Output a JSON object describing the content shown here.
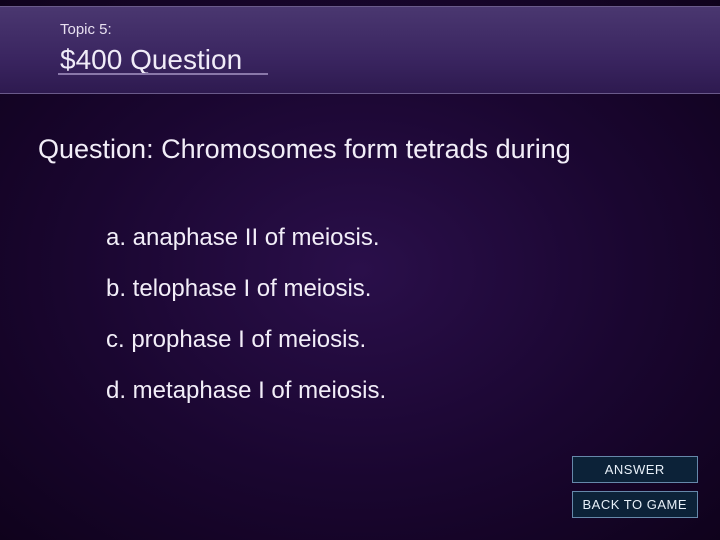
{
  "background": {
    "gradient_center": "#2a0f4a",
    "gradient_mid": "#1a0630",
    "gradient_edge": "#0f021c"
  },
  "header": {
    "topic_label": "Topic 5:",
    "title": "$400 Question",
    "bg_top": "#4a3770",
    "bg_bottom": "#2e1a50",
    "border_color": "#6a5a8a",
    "underline_color": "#8a78aa",
    "text_color": "#f0ecf8",
    "topic_fontsize": 15,
    "title_fontsize": 28
  },
  "question": {
    "text": "Question: Chromosomes form tetrads during",
    "fontsize": 27,
    "color": "#f2eef8"
  },
  "options": {
    "a": "a. anaphase II of meiosis.",
    "b": "b. telophase I of meiosis.",
    "c": "c. prophase I of meiosis.",
    "d": "d. metaphase I of meiosis.",
    "fontsize": 24,
    "color": "#f2eef8"
  },
  "buttons": {
    "answer": "ANSWER",
    "back": "BACK TO GAME",
    "bg": "#0c2238",
    "border": "#6688aa",
    "text_color": "#e8f0f8",
    "fontsize": 13
  }
}
